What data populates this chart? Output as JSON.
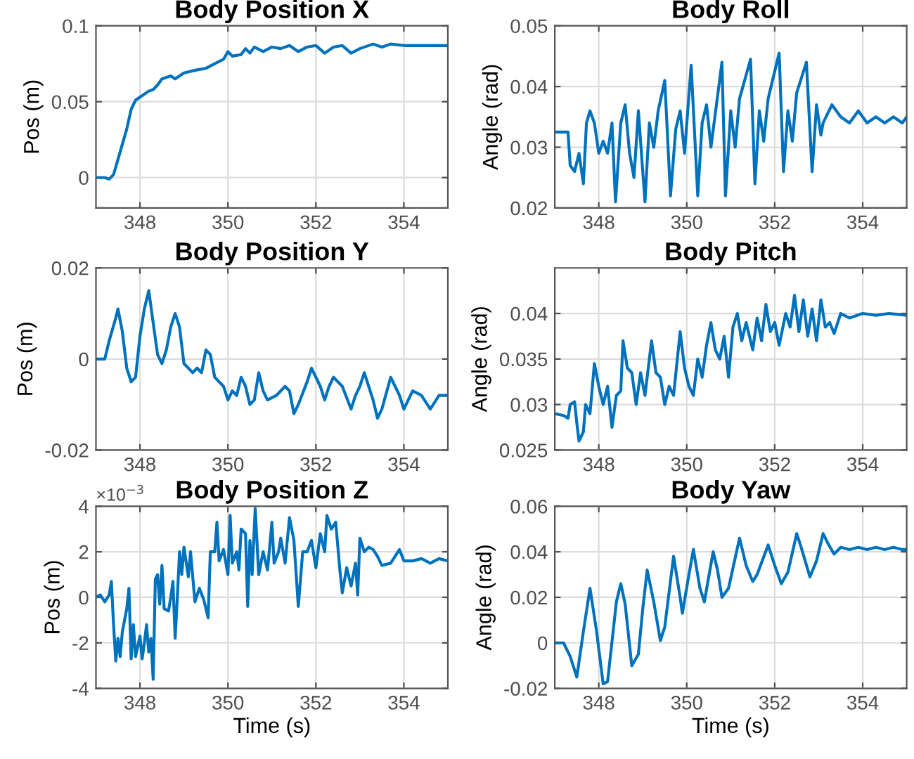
{
  "chart_data": [
    {
      "type": "line",
      "title": "Body Position X",
      "ylabel": "Pos (m)",
      "xlim": [
        347,
        355
      ],
      "xticks": [
        348,
        350,
        352,
        354
      ],
      "ylim": [
        -0.02,
        0.1
      ],
      "yticks": [
        0,
        0.05,
        0.1
      ],
      "grid": true,
      "tick_labels": "xy",
      "series": [
        {
          "color": "#0072bd",
          "x": [
            347.0,
            347.2,
            347.3,
            347.4,
            347.5,
            347.6,
            347.7,
            347.8,
            347.9,
            348.0,
            348.2,
            348.3,
            348.4,
            348.5,
            348.7,
            348.8,
            349.0,
            349.3,
            349.5,
            349.7,
            349.9,
            350.0,
            350.1,
            350.3,
            350.4,
            350.5,
            350.6,
            350.8,
            351.0,
            351.2,
            351.4,
            351.6,
            351.8,
            352.0,
            352.2,
            352.4,
            352.6,
            352.8,
            353.0,
            353.3,
            353.5,
            353.7,
            354.0,
            354.5,
            355.0
          ],
          "values": [
            0,
            0,
            -0.001,
            0.002,
            0.012,
            0.022,
            0.032,
            0.045,
            0.051,
            0.053,
            0.057,
            0.058,
            0.061,
            0.065,
            0.067,
            0.065,
            0.069,
            0.071,
            0.072,
            0.075,
            0.078,
            0.083,
            0.08,
            0.081,
            0.085,
            0.082,
            0.086,
            0.083,
            0.086,
            0.085,
            0.087,
            0.083,
            0.086,
            0.087,
            0.082,
            0.086,
            0.087,
            0.082,
            0.085,
            0.088,
            0.086,
            0.088,
            0.087,
            0.087,
            0.087
          ]
        }
      ]
    },
    {
      "type": "line",
      "title": "Body Roll",
      "ylabel": "Angle (rad)",
      "xlim": [
        347,
        355
      ],
      "xticks": [
        348,
        350,
        352,
        354
      ],
      "ylim": [
        0.02,
        0.05
      ],
      "yticks": [
        0.02,
        0.03,
        0.04,
        0.05
      ],
      "grid": true,
      "series": [
        {
          "color": "#0072bd",
          "x": [
            347.0,
            347.3,
            347.35,
            347.45,
            347.55,
            347.65,
            347.72,
            347.8,
            347.9,
            348.0,
            348.1,
            348.2,
            348.3,
            348.38,
            348.5,
            348.6,
            348.7,
            348.8,
            348.9,
            349.05,
            349.15,
            349.25,
            349.35,
            349.5,
            349.63,
            349.75,
            349.85,
            349.95,
            350.1,
            350.25,
            350.35,
            350.45,
            350.55,
            350.8,
            350.88,
            351.0,
            351.1,
            351.2,
            351.45,
            351.55,
            351.65,
            351.75,
            351.85,
            352.1,
            352.2,
            352.3,
            352.4,
            352.5,
            352.72,
            352.85,
            352.95,
            353.05,
            353.1,
            353.3,
            353.5,
            353.7,
            353.9,
            354.1,
            354.3,
            354.5,
            354.7,
            354.9,
            355.0
          ],
          "values": [
            0.0325,
            0.0325,
            0.027,
            0.026,
            0.029,
            0.024,
            0.034,
            0.036,
            0.034,
            0.029,
            0.031,
            0.029,
            0.034,
            0.021,
            0.034,
            0.037,
            0.029,
            0.025,
            0.036,
            0.021,
            0.034,
            0.03,
            0.036,
            0.041,
            0.022,
            0.033,
            0.036,
            0.029,
            0.0435,
            0.022,
            0.034,
            0.037,
            0.03,
            0.044,
            0.022,
            0.036,
            0.03,
            0.038,
            0.0445,
            0.024,
            0.036,
            0.031,
            0.038,
            0.0455,
            0.026,
            0.036,
            0.031,
            0.039,
            0.044,
            0.026,
            0.037,
            0.032,
            0.034,
            0.037,
            0.035,
            0.034,
            0.036,
            0.034,
            0.035,
            0.034,
            0.035,
            0.034,
            0.035
          ]
        }
      ]
    },
    {
      "type": "line",
      "title": "Body Position Y",
      "ylabel": "Pos (m)",
      "xlim": [
        347,
        355
      ],
      "xticks": [
        348,
        350,
        352,
        354
      ],
      "ylim": [
        -0.02,
        0.02
      ],
      "yticks": [
        -0.02,
        0,
        0.02
      ],
      "grid": true,
      "series": [
        {
          "color": "#0072bd",
          "x": [
            347.0,
            347.2,
            347.3,
            347.45,
            347.5,
            347.6,
            347.7,
            347.8,
            347.9,
            348.0,
            348.1,
            348.2,
            348.3,
            348.4,
            348.5,
            348.6,
            348.7,
            348.8,
            348.9,
            349.0,
            349.1,
            349.2,
            349.3,
            349.4,
            349.5,
            349.6,
            349.7,
            349.8,
            349.9,
            350.0,
            350.1,
            350.2,
            350.3,
            350.4,
            350.5,
            350.6,
            350.7,
            350.8,
            350.9,
            351.1,
            351.3,
            351.4,
            351.5,
            351.6,
            351.8,
            351.9,
            352.0,
            352.1,
            352.2,
            352.3,
            352.4,
            352.6,
            352.8,
            352.9,
            353.0,
            353.1,
            353.3,
            353.4,
            353.5,
            353.7,
            353.9,
            354.0,
            354.2,
            354.4,
            354.6,
            354.8,
            355.0
          ],
          "values": [
            0,
            0,
            0.004,
            0.009,
            0.011,
            0.006,
            -0.002,
            -0.005,
            -0.004,
            0.005,
            0.011,
            0.015,
            0.008,
            0.001,
            -0.001,
            0.002,
            0.007,
            0.01,
            0.007,
            -0.001,
            -0.002,
            -0.003,
            -0.002,
            -0.003,
            0.002,
            0.001,
            -0.004,
            -0.005,
            -0.006,
            -0.009,
            -0.007,
            -0.008,
            -0.004,
            -0.006,
            -0.01,
            -0.009,
            -0.003,
            -0.007,
            -0.009,
            -0.008,
            -0.006,
            -0.007,
            -0.012,
            -0.01,
            -0.005,
            -0.002,
            -0.004,
            -0.006,
            -0.009,
            -0.006,
            -0.004,
            -0.006,
            -0.011,
            -0.008,
            -0.006,
            -0.003,
            -0.009,
            -0.013,
            -0.011,
            -0.004,
            -0.008,
            -0.011,
            -0.007,
            -0.008,
            -0.011,
            -0.008,
            -0.008
          ]
        }
      ]
    },
    {
      "type": "line",
      "title": "Body Pitch",
      "ylabel": "Angle (rad)",
      "xlim": [
        347,
        355
      ],
      "xticks": [
        348,
        350,
        352,
        354
      ],
      "ylim": [
        0.025,
        0.045
      ],
      "yticks": [
        0.025,
        0.03,
        0.035,
        0.04
      ],
      "grid": true,
      "series": [
        {
          "color": "#0072bd",
          "x": [
            347.0,
            347.2,
            347.3,
            347.35,
            347.45,
            347.5,
            347.55,
            347.65,
            347.7,
            347.8,
            347.9,
            348.0,
            348.1,
            348.2,
            348.3,
            348.4,
            348.5,
            348.55,
            348.65,
            348.75,
            348.85,
            348.95,
            349.05,
            349.2,
            349.3,
            349.4,
            349.5,
            349.6,
            349.7,
            349.85,
            349.95,
            350.05,
            350.15,
            350.25,
            350.35,
            350.45,
            350.55,
            350.65,
            350.75,
            350.85,
            350.95,
            351.05,
            351.15,
            351.25,
            351.35,
            351.5,
            351.6,
            351.7,
            351.8,
            351.9,
            352.0,
            352.1,
            352.25,
            352.35,
            352.45,
            352.55,
            352.65,
            352.75,
            352.85,
            352.95,
            353.05,
            353.15,
            353.25,
            353.35,
            353.5,
            353.7,
            354.0,
            354.3,
            354.6,
            355.0
          ],
          "values": [
            0.029,
            0.0288,
            0.0285,
            0.03,
            0.0303,
            0.028,
            0.026,
            0.027,
            0.03,
            0.029,
            0.0345,
            0.032,
            0.03,
            0.032,
            0.0275,
            0.031,
            0.0315,
            0.037,
            0.034,
            0.0335,
            0.03,
            0.0335,
            0.031,
            0.037,
            0.0335,
            0.033,
            0.03,
            0.032,
            0.031,
            0.038,
            0.034,
            0.032,
            0.031,
            0.035,
            0.033,
            0.0365,
            0.039,
            0.036,
            0.035,
            0.0375,
            0.033,
            0.0385,
            0.04,
            0.037,
            0.039,
            0.036,
            0.0395,
            0.037,
            0.041,
            0.038,
            0.039,
            0.0365,
            0.04,
            0.0385,
            0.042,
            0.038,
            0.0415,
            0.0375,
            0.0405,
            0.037,
            0.0415,
            0.0385,
            0.039,
            0.0378,
            0.04,
            0.0395,
            0.04,
            0.0398,
            0.04,
            0.0398
          ]
        }
      ]
    },
    {
      "type": "line",
      "title": "Body Position Z",
      "ylabel": "Pos (m)",
      "xlabel": "Time (s)",
      "annotations": [
        "×10$^{−3}$"
      ],
      "xlim": [
        347,
        355
      ],
      "xticks": [
        348,
        350,
        352,
        354
      ],
      "ylim": [
        -4,
        4
      ],
      "yticks": [
        -4,
        -2,
        0,
        2,
        4
      ],
      "grid": true,
      "series": [
        {
          "color": "#0072bd",
          "x": [
            347.0,
            347.1,
            347.2,
            347.3,
            347.35,
            347.4,
            347.45,
            347.5,
            347.55,
            347.6,
            347.7,
            347.75,
            347.8,
            347.85,
            347.9,
            348.0,
            348.05,
            348.1,
            348.15,
            348.2,
            348.25,
            348.3,
            348.35,
            348.4,
            348.45,
            348.5,
            348.55,
            348.65,
            348.7,
            348.75,
            348.8,
            348.85,
            348.9,
            348.95,
            349.0,
            349.1,
            349.15,
            349.25,
            349.35,
            349.45,
            349.55,
            349.6,
            349.7,
            349.75,
            349.8,
            349.9,
            350.0,
            350.05,
            350.1,
            350.2,
            350.25,
            350.3,
            350.4,
            350.45,
            350.5,
            350.55,
            350.62,
            350.7,
            350.8,
            350.9,
            351.0,
            351.05,
            351.15,
            351.2,
            351.3,
            351.4,
            351.5,
            351.6,
            351.7,
            351.8,
            351.9,
            352.0,
            352.1,
            352.2,
            352.25,
            352.35,
            352.45,
            352.55,
            352.6,
            352.7,
            352.8,
            352.9,
            352.95,
            353.0,
            353.1,
            353.2,
            353.3,
            353.4,
            353.5,
            353.7,
            353.9,
            354.0,
            354.2,
            354.4,
            354.6,
            354.8,
            355.0
          ],
          "values": [
            0,
            0.1,
            -0.2,
            0.1,
            0.7,
            -1.2,
            -2.8,
            -1.8,
            -2.6,
            -1.5,
            -0.5,
            0.4,
            -2.7,
            -1.2,
            -2.6,
            -1.7,
            -2.7,
            -2.0,
            -1.2,
            -2.4,
            -1.8,
            -3.6,
            0.8,
            1.0,
            -0.3,
            1.4,
            -0.5,
            -0.6,
            0,
            0.7,
            -1.8,
            0,
            2.0,
            1.0,
            2.2,
            0.9,
            2.0,
            -0.2,
            0.4,
            -0.1,
            -0.9,
            2.0,
            2.0,
            3.3,
            1.6,
            2.1,
            1.0,
            3.6,
            1.5,
            2.0,
            1.2,
            3.0,
            2.8,
            -0.4,
            2.5,
            1.0,
            3.9,
            1.0,
            2.0,
            1.2,
            3.3,
            1.5,
            2.0,
            2.6,
            1.5,
            3.5,
            2.5,
            -0.4,
            2.0,
            2.0,
            2.5,
            1.3,
            2.8,
            2.0,
            3.6,
            3.0,
            3.3,
            1.1,
            0.2,
            1.3,
            0.5,
            1.5,
            0.1,
            2.6,
            2.0,
            2.2,
            2.1,
            1.8,
            1.4,
            1.5,
            2.1,
            1.6,
            1.6,
            1.7,
            1.5,
            1.7,
            1.6
          ]
        }
      ]
    },
    {
      "type": "line",
      "title": "Body Yaw",
      "ylabel": "Angle (rad)",
      "xlabel": "Time (s)",
      "xlim": [
        347,
        355
      ],
      "xticks": [
        348,
        350,
        352,
        354
      ],
      "ylim": [
        -0.02,
        0.06
      ],
      "yticks": [
        -0.02,
        0,
        0.02,
        0.04,
        0.06
      ],
      "grid": true,
      "series": [
        {
          "color": "#0072bd",
          "x": [
            347.0,
            347.2,
            347.35,
            347.5,
            347.65,
            347.8,
            347.95,
            348.1,
            348.2,
            348.4,
            348.5,
            348.6,
            348.75,
            348.9,
            349.0,
            349.1,
            349.25,
            349.4,
            349.5,
            349.7,
            349.85,
            349.9,
            350.05,
            350.15,
            350.3,
            350.4,
            350.6,
            350.7,
            350.8,
            350.95,
            351.2,
            351.35,
            351.5,
            351.6,
            351.85,
            352.0,
            352.15,
            352.3,
            352.5,
            352.6,
            352.8,
            352.95,
            353.1,
            353.2,
            353.35,
            353.5,
            353.7,
            353.9,
            354.1,
            354.3,
            354.5,
            354.7,
            354.9,
            355.0
          ],
          "values": [
            0,
            0,
            -0.006,
            -0.015,
            0.005,
            0.024,
            0.005,
            -0.018,
            -0.017,
            0.018,
            0.026,
            0.017,
            -0.01,
            -0.005,
            0.015,
            0.032,
            0.018,
            0.001,
            0.007,
            0.038,
            0.02,
            0.013,
            0.03,
            0.041,
            0.024,
            0.018,
            0.04,
            0.032,
            0.02,
            0.024,
            0.046,
            0.034,
            0.027,
            0.03,
            0.043,
            0.034,
            0.026,
            0.031,
            0.048,
            0.042,
            0.029,
            0.036,
            0.048,
            0.044,
            0.039,
            0.042,
            0.041,
            0.042,
            0.041,
            0.042,
            0.041,
            0.042,
            0.041,
            0.041
          ]
        }
      ]
    }
  ]
}
